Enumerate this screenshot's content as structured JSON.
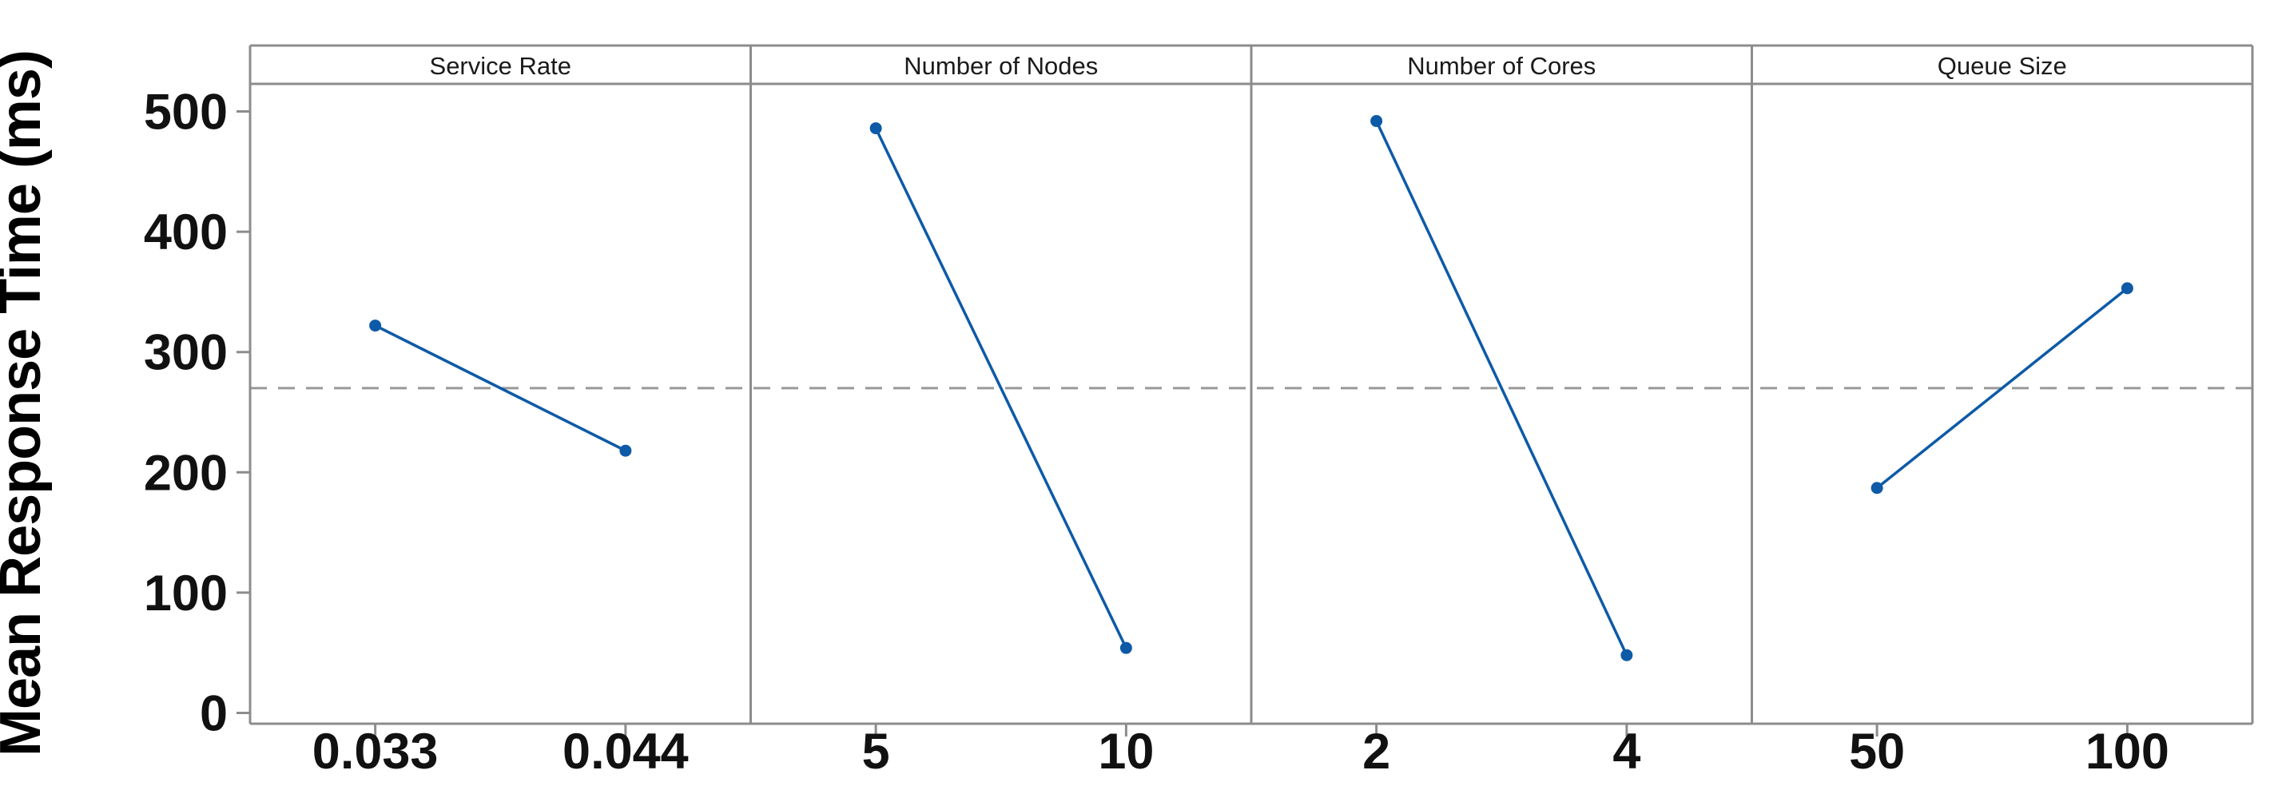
{
  "figure": {
    "background": "#ffffff",
    "kind": "main-effects-plot"
  },
  "chart_data": {
    "type": "line",
    "ylabel": "Mean Response Time (ms)",
    "ylim": [
      0,
      520
    ],
    "yticks": [
      0,
      100,
      200,
      300,
      400,
      500
    ],
    "grand_mean": 270,
    "grand_mean_style": "dashed",
    "grid": false,
    "legend": "none",
    "panels": [
      {
        "header": "Service Rate",
        "categories": [
          "0.033",
          "0.044"
        ],
        "values": [
          322,
          218
        ]
      },
      {
        "header": "Number of Nodes",
        "categories": [
          "5",
          "10"
        ],
        "values": [
          486,
          54
        ]
      },
      {
        "header": "Number of Cores",
        "categories": [
          "2",
          "4"
        ],
        "values": [
          492,
          48
        ]
      },
      {
        "header": "Queue Size",
        "categories": [
          "50",
          "100"
        ],
        "values": [
          187,
          353
        ]
      }
    ],
    "colors": {
      "series": "#0d5aa7",
      "frame": "#8c8c8c",
      "mean_line": "#999999",
      "text": "#1a1a1a"
    }
  }
}
